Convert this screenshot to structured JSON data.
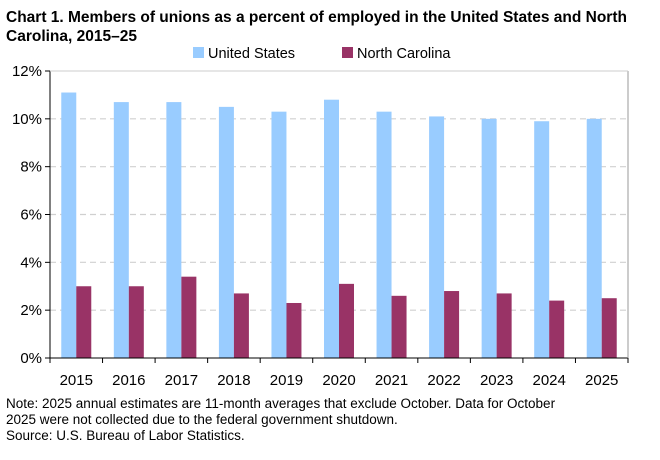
{
  "chart_data": {
    "type": "bar",
    "title": "Chart 1. Members of unions as a percent of employed  in the United States and North Carolina, 2015–25",
    "categories": [
      "2015",
      "2016",
      "2017",
      "2018",
      "2019",
      "2020",
      "2021",
      "2022",
      "2023",
      "2024",
      "2025"
    ],
    "series": [
      {
        "name": "United States",
        "color": "#99ccff",
        "values": [
          11.1,
          10.7,
          10.7,
          10.5,
          10.3,
          10.8,
          10.3,
          10.1,
          10.0,
          9.9,
          10.0
        ]
      },
      {
        "name": "North Carolina",
        "color": "#993366",
        "values": [
          3.0,
          3.0,
          3.4,
          2.7,
          2.3,
          3.1,
          2.6,
          2.8,
          2.7,
          2.4,
          2.5
        ]
      }
    ],
    "ylim": [
      0,
      12
    ],
    "yticks": [
      "0%",
      "2%",
      "4%",
      "6%",
      "8%",
      "10%",
      "12%"
    ],
    "grid": true,
    "legend": "top",
    "xlabel": "",
    "ylabel": ""
  },
  "notes": {
    "line1": "Note: 2025 annual estimates are 11-month averages that exclude October. Data for October",
    "line2": "2025 were not collected due to the federal government shutdown.",
    "source": "Source: U.S. Bureau of Labor Statistics."
  }
}
